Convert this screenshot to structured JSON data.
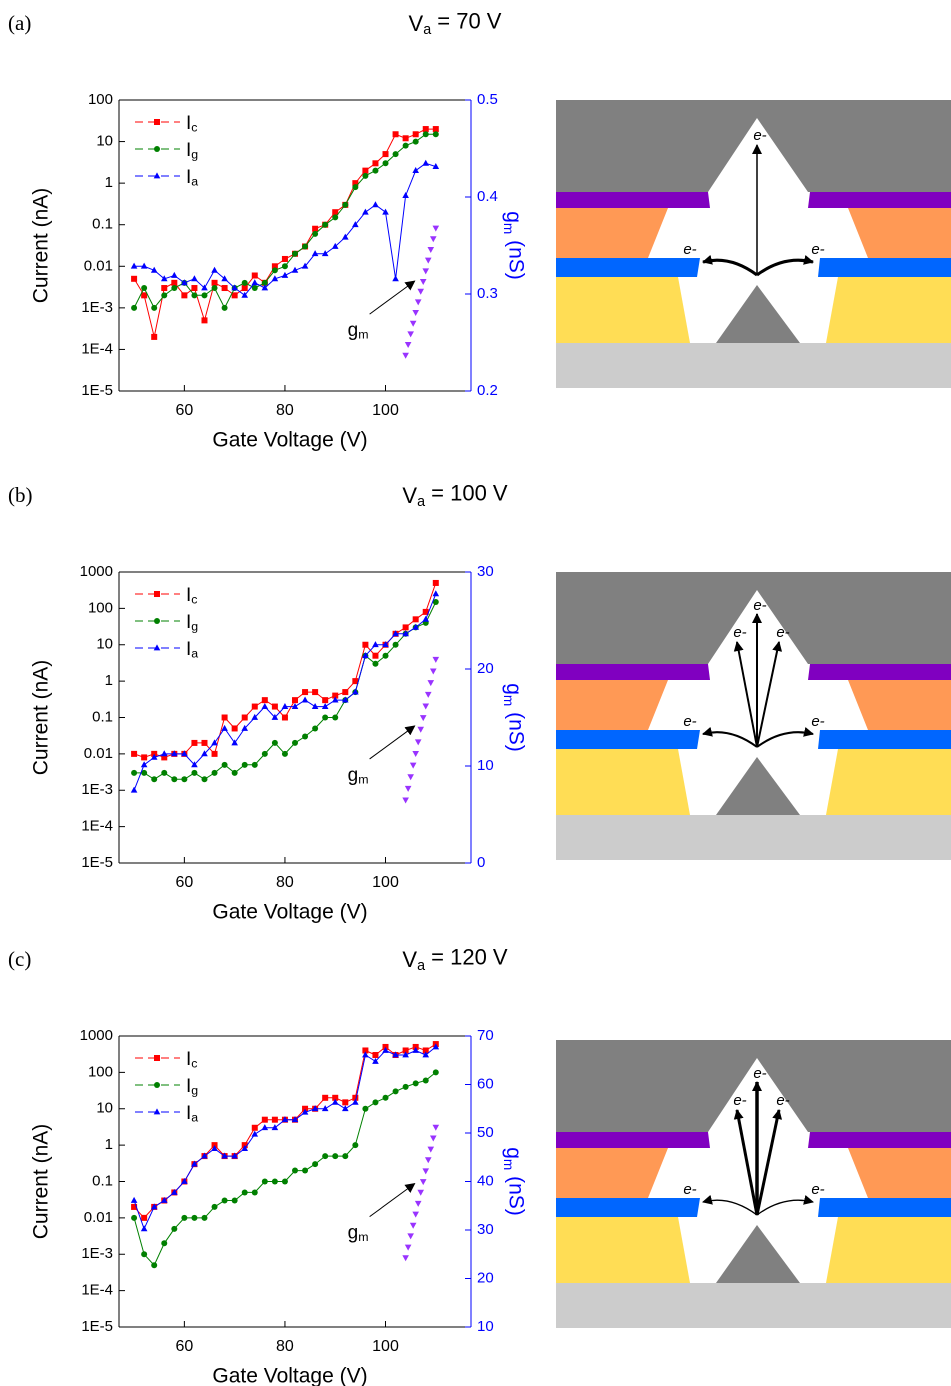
{
  "chart_data": [
    {
      "type": "line",
      "label": "(a)",
      "title": "Va = 70 V",
      "x_label": "Gate Voltage (V)",
      "y_label": "Current (nA)",
      "y2_label": "gm (nS)",
      "annotation": "gm",
      "xlim": [
        47,
        117
      ],
      "xticks": [
        60,
        80,
        100
      ],
      "ylim": [
        1e-05,
        100
      ],
      "log_y": true,
      "yticks": [
        {
          "value": 1e-05,
          "label": "1E-5"
        },
        {
          "value": 0.0001,
          "label": "1E-4"
        },
        {
          "value": 0.001,
          "label": "1E-3"
        },
        0.01,
        0.1,
        1,
        10,
        100
      ],
      "y2lim": [
        0.2,
        0.5
      ],
      "y2ticks": [
        0.2,
        0.3,
        0.4,
        0.5
      ],
      "y2_color": "#0000ff",
      "legend": "upper left",
      "x": [
        50,
        52,
        54,
        56,
        58,
        60,
        62,
        64,
        66,
        68,
        70,
        72,
        74,
        76,
        78,
        80,
        82,
        84,
        86,
        88,
        90,
        92,
        94,
        96,
        98,
        100,
        102,
        104,
        106,
        108,
        110
      ],
      "series": [
        {
          "name": "Ic",
          "color": "#ff0000",
          "marker": "square",
          "line": true,
          "values": [
            0.005,
            0.002,
            0.0002,
            0.003,
            0.004,
            0.002,
            0.003,
            0.0005,
            0.004,
            0.003,
            0.002,
            0.003,
            0.006,
            0.004,
            0.01,
            0.015,
            0.02,
            0.03,
            0.08,
            0.1,
            0.2,
            0.3,
            1,
            2,
            3,
            5,
            15,
            12,
            15,
            20,
            20
          ]
        },
        {
          "name": "Ig",
          "color": "#008000",
          "marker": "circle",
          "line": true,
          "values": [
            0.001,
            0.003,
            0.001,
            0.002,
            0.003,
            0.004,
            0.002,
            0.002,
            0.003,
            0.001,
            0.003,
            0.004,
            0.003,
            0.004,
            0.008,
            0.01,
            0.02,
            0.03,
            0.06,
            0.1,
            0.15,
            0.3,
            0.8,
            1.5,
            2,
            3,
            5,
            8,
            10,
            15,
            15
          ]
        },
        {
          "name": "Ia",
          "color": "#0000ff",
          "marker": "triangle",
          "line": true,
          "values": [
            0.01,
            0.01,
            0.008,
            0.005,
            0.006,
            0.004,
            0.005,
            0.003,
            0.008,
            0.005,
            0.003,
            0.002,
            0.004,
            0.003,
            0.005,
            0.006,
            0.008,
            0.01,
            0.02,
            0.02,
            0.03,
            0.05,
            0.1,
            0.2,
            0.3,
            0.2,
            0.005,
            0.5,
            2,
            3,
            2.5
          ]
        },
        {
          "axis": "y2",
          "color": "#9933ff",
          "marker": "triangle-down",
          "line": false,
          "x": [
            104,
            104.5,
            105,
            105.5,
            106,
            106.5,
            107,
            107.5,
            108,
            108.5,
            109,
            109.5,
            110
          ],
          "values": [
            0.237,
            0.248,
            0.259,
            0.27,
            0.281,
            0.292,
            0.303,
            0.313,
            0.324,
            0.335,
            0.346,
            0.357,
            0.368
          ]
        }
      ],
      "diagram_labels": [
        "e-",
        "e-",
        "e-"
      ]
    },
    {
      "type": "line",
      "label": "(b)",
      "title": "Va = 100 V",
      "x_label": "Gate Voltage (V)",
      "y_label": "Current (nA)",
      "y2_label": "gm (nS)",
      "annotation": "gm",
      "xlim": [
        47,
        117
      ],
      "xticks": [
        60,
        80,
        100
      ],
      "ylim": [
        1e-05,
        1000
      ],
      "log_y": true,
      "yticks": [
        {
          "value": 1e-05,
          "label": "1E-5"
        },
        {
          "value": 0.0001,
          "label": "1E-4"
        },
        {
          "value": 0.001,
          "label": "1E-3"
        },
        0.01,
        0.1,
        1,
        10,
        100,
        1000
      ],
      "y2lim": [
        0,
        30
      ],
      "y2ticks": [
        0,
        10,
        20,
        30
      ],
      "y2_color": "#0000ff",
      "legend": "upper left",
      "x": [
        50,
        52,
        54,
        56,
        58,
        60,
        62,
        64,
        66,
        68,
        70,
        72,
        74,
        76,
        78,
        80,
        82,
        84,
        86,
        88,
        90,
        92,
        94,
        96,
        98,
        100,
        102,
        104,
        106,
        108,
        110
      ],
      "series": [
        {
          "name": "Ic",
          "color": "#ff0000",
          "marker": "square",
          "line": true,
          "values": [
            0.01,
            0.008,
            0.01,
            0.008,
            0.01,
            0.01,
            0.02,
            0.02,
            0.01,
            0.1,
            0.05,
            0.1,
            0.2,
            0.3,
            0.2,
            0.1,
            0.3,
            0.5,
            0.5,
            0.3,
            0.4,
            0.5,
            1,
            10,
            5,
            10,
            20,
            30,
            50,
            80,
            500
          ]
        },
        {
          "name": "Ig",
          "color": "#008000",
          "marker": "circle",
          "line": true,
          "values": [
            0.003,
            0.003,
            0.002,
            0.003,
            0.002,
            0.002,
            0.003,
            0.002,
            0.003,
            0.005,
            0.003,
            0.005,
            0.005,
            0.01,
            0.02,
            0.01,
            0.02,
            0.03,
            0.05,
            0.1,
            0.1,
            0.3,
            0.5,
            5,
            3,
            5,
            10,
            20,
            30,
            40,
            150
          ]
        },
        {
          "name": "Ia",
          "color": "#0000ff",
          "marker": "triangle",
          "line": true,
          "values": [
            0.001,
            0.005,
            0.008,
            0.01,
            0.01,
            0.01,
            0.005,
            0.01,
            0.02,
            0.05,
            0.02,
            0.05,
            0.1,
            0.2,
            0.1,
            0.2,
            0.2,
            0.3,
            0.2,
            0.2,
            0.3,
            0.3,
            0.5,
            5,
            10,
            10,
            20,
            20,
            30,
            50,
            250
          ]
        },
        {
          "axis": "y2",
          "color": "#9933ff",
          "marker": "triangle-down",
          "line": false,
          "x": [
            104,
            104.5,
            105,
            105.5,
            106,
            106.5,
            107,
            107.5,
            108,
            108.5,
            109,
            109.5,
            110
          ],
          "values": [
            6.5,
            7.7,
            8.9,
            10.1,
            11.3,
            12.5,
            13.8,
            15,
            16.2,
            17.4,
            18.6,
            19.8,
            21
          ]
        }
      ],
      "diagram_labels": [
        "e-",
        "e-",
        "e-",
        "e-",
        "e-"
      ]
    },
    {
      "type": "line",
      "label": "(c)",
      "title": "Va = 120 V",
      "x_label": "Gate Voltage (V)",
      "y_label": "Current (nA)",
      "y2_label": "gm (nS)",
      "annotation": "gm",
      "xlim": [
        47,
        117
      ],
      "xticks": [
        60,
        80,
        100
      ],
      "ylim": [
        1e-05,
        1000
      ],
      "log_y": true,
      "yticks": [
        {
          "value": 1e-05,
          "label": "1E-5"
        },
        {
          "value": 0.0001,
          "label": "1E-4"
        },
        {
          "value": 0.001,
          "label": "1E-3"
        },
        0.01,
        0.1,
        1,
        10,
        100,
        1000
      ],
      "y2lim": [
        10,
        70
      ],
      "y2ticks": [
        10,
        20,
        30,
        40,
        50,
        60,
        70
      ],
      "y2_color": "#0000ff",
      "legend": "upper left",
      "x": [
        50,
        52,
        54,
        56,
        58,
        60,
        62,
        64,
        66,
        68,
        70,
        72,
        74,
        76,
        78,
        80,
        82,
        84,
        86,
        88,
        90,
        92,
        94,
        96,
        98,
        100,
        102,
        104,
        106,
        108,
        110
      ],
      "series": [
        {
          "name": "Ic",
          "color": "#ff0000",
          "marker": "square",
          "line": true,
          "values": [
            0.02,
            0.01,
            0.02,
            0.03,
            0.05,
            0.1,
            0.3,
            0.5,
            1,
            0.5,
            0.5,
            1,
            3,
            5,
            5,
            5,
            5,
            10,
            10,
            20,
            20,
            15,
            20,
            400,
            300,
            500,
            300,
            400,
            500,
            400,
            600
          ]
        },
        {
          "name": "Ig",
          "color": "#008000",
          "marker": "circle",
          "line": true,
          "values": [
            0.01,
            0.001,
            0.0005,
            0.002,
            0.005,
            0.01,
            0.01,
            0.01,
            0.02,
            0.03,
            0.03,
            0.05,
            0.05,
            0.1,
            0.1,
            0.1,
            0.2,
            0.2,
            0.3,
            0.5,
            0.5,
            0.5,
            1,
            10,
            15,
            20,
            30,
            40,
            50,
            60,
            100
          ]
        },
        {
          "name": "Ia",
          "color": "#0000ff",
          "marker": "triangle",
          "line": true,
          "values": [
            0.03,
            0.005,
            0.02,
            0.03,
            0.05,
            0.1,
            0.3,
            0.5,
            0.8,
            0.5,
            0.5,
            0.8,
            2,
            3,
            3,
            5,
            5,
            8,
            10,
            10,
            15,
            10,
            15,
            300,
            200,
            400,
            300,
            300,
            400,
            300,
            500
          ]
        },
        {
          "axis": "y2",
          "color": "#9933ff",
          "marker": "triangle-down",
          "line": false,
          "x": [
            104,
            104.5,
            105,
            105.5,
            106,
            106.5,
            107,
            107.5,
            108,
            108.5,
            109,
            109.5,
            110
          ],
          "values": [
            24.3,
            26.5,
            28.8,
            31,
            33.3,
            35.5,
            37.8,
            40,
            42.2,
            44.5,
            46.7,
            49,
            51.2
          ]
        }
      ],
      "diagram_labels": [
        "e-",
        "e-",
        "e-",
        "e-",
        "e-"
      ]
    }
  ]
}
